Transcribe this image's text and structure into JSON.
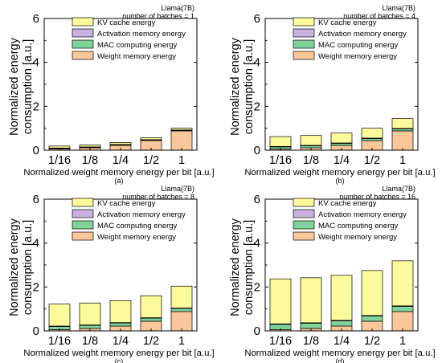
{
  "colors": {
    "weight": "#f9c79a",
    "mac": "#80d39a",
    "activation": "#c8b3e0",
    "kv": "#fbfb9c",
    "stroke": "#000000"
  },
  "chart_data": [
    {
      "panel_label": "(a)",
      "type": "bar",
      "stacked": true,
      "model": "Llama(7B)",
      "batches_text": "number of batches = 1",
      "xlabel": "Normalized weight memory energy per bit [a.u.]",
      "ylabel": "Normalized energy consumption [a.u.]",
      "ylim": [
        0,
        6
      ],
      "yticks": [
        "0",
        "2",
        "4",
        "6"
      ],
      "categories": [
        "1/16",
        "1/8",
        "1/4",
        "1/2",
        "1"
      ],
      "legend_position": "top-right",
      "series": [
        {
          "name": "Weight memory energy",
          "color_key": "weight",
          "values": [
            0.06,
            0.11,
            0.22,
            0.44,
            0.88
          ]
        },
        {
          "name": "MAC computing energy",
          "color_key": "mac",
          "values": [
            0.03,
            0.03,
            0.03,
            0.03,
            0.03
          ]
        },
        {
          "name": "Activation memory energy",
          "color_key": "activation",
          "values": [
            0.01,
            0.01,
            0.01,
            0.01,
            0.01
          ]
        },
        {
          "name": "KV cache energy",
          "color_key": "kv",
          "values": [
            0.09,
            0.09,
            0.09,
            0.09,
            0.09
          ]
        }
      ]
    },
    {
      "panel_label": "(b)",
      "type": "bar",
      "stacked": true,
      "model": "Llama(7B)",
      "batches_text": "number of batches = 4",
      "xlabel": "Normalized weight memory energy per bit [a.u.]",
      "ylabel": "Normalized energy consumption [a.u.]",
      "ylim": [
        0,
        6
      ],
      "yticks": [
        "0",
        "2",
        "4",
        "6"
      ],
      "categories": [
        "1/16",
        "1/8",
        "1/4",
        "1/2",
        "1"
      ],
      "legend_position": "top-right",
      "series": [
        {
          "name": "Weight memory energy",
          "color_key": "weight",
          "values": [
            0.06,
            0.11,
            0.22,
            0.44,
            0.88
          ]
        },
        {
          "name": "MAC computing energy",
          "color_key": "mac",
          "values": [
            0.1,
            0.1,
            0.1,
            0.1,
            0.1
          ]
        },
        {
          "name": "Activation memory energy",
          "color_key": "activation",
          "values": [
            0.01,
            0.01,
            0.01,
            0.01,
            0.01
          ]
        },
        {
          "name": "KV cache energy",
          "color_key": "kv",
          "values": [
            0.45,
            0.45,
            0.45,
            0.45,
            0.45
          ]
        }
      ]
    },
    {
      "panel_label": "(c)",
      "type": "bar",
      "stacked": true,
      "model": "Llama(7B)",
      "batches_text": "number of batches = 8",
      "xlabel": "Normalized weight memory energy per bit [a.u.]",
      "ylabel": "Normalized energy consumption [a.u.]",
      "ylim": [
        0,
        6
      ],
      "yticks": [
        "0",
        "2",
        "4",
        "6"
      ],
      "categories": [
        "1/16",
        "1/8",
        "1/4",
        "1/2",
        "1"
      ],
      "legend_position": "top-right",
      "series": [
        {
          "name": "Weight memory energy",
          "color_key": "weight",
          "values": [
            0.06,
            0.11,
            0.22,
            0.44,
            0.88
          ]
        },
        {
          "name": "MAC computing energy",
          "color_key": "mac",
          "values": [
            0.14,
            0.14,
            0.14,
            0.14,
            0.14
          ]
        },
        {
          "name": "Activation memory energy",
          "color_key": "activation",
          "values": [
            0.02,
            0.02,
            0.02,
            0.02,
            0.02
          ]
        },
        {
          "name": "KV cache energy",
          "color_key": "kv",
          "values": [
            1.0,
            1.0,
            1.0,
            1.0,
            1.0
          ]
        }
      ]
    },
    {
      "panel_label": "(d)",
      "type": "bar",
      "stacked": true,
      "model": "Llama(7B)",
      "batches_text": "number of batches = 16",
      "xlabel": "Normalized weight memory energy per bit [a.u.]",
      "ylabel": "Normalized energy consumption [a.u.]",
      "ylim": [
        0,
        6
      ],
      "yticks": [
        "0",
        "2",
        "4",
        "6"
      ],
      "categories": [
        "1/16",
        "1/8",
        "1/4",
        "1/2",
        "1"
      ],
      "legend_position": "top-right",
      "series": [
        {
          "name": "Weight memory energy",
          "color_key": "weight",
          "values": [
            0.06,
            0.11,
            0.22,
            0.44,
            0.88
          ]
        },
        {
          "name": "MAC computing energy",
          "color_key": "mac",
          "values": [
            0.24,
            0.24,
            0.24,
            0.24,
            0.24
          ]
        },
        {
          "name": "Activation memory energy",
          "color_key": "activation",
          "values": [
            0.02,
            0.02,
            0.02,
            0.02,
            0.02
          ]
        },
        {
          "name": "KV cache energy",
          "color_key": "kv",
          "values": [
            2.05,
            2.05,
            2.05,
            2.05,
            2.05
          ]
        }
      ]
    }
  ]
}
